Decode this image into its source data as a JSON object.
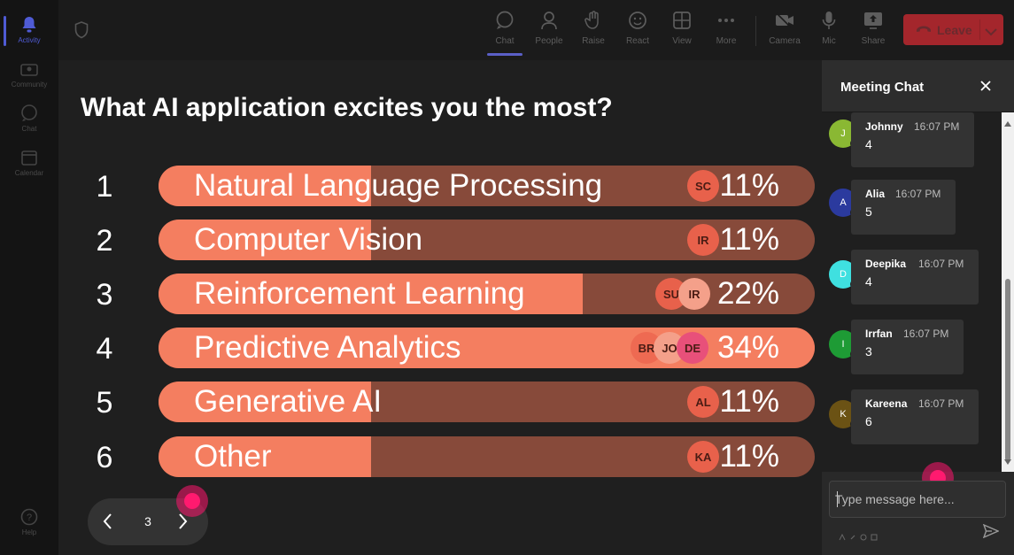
{
  "rail": {
    "items": [
      {
        "label": "Activity",
        "icon": "bell-icon"
      },
      {
        "label": "Community",
        "icon": "community-icon"
      },
      {
        "label": "Chat",
        "icon": "chat-icon"
      },
      {
        "label": "Calendar",
        "icon": "calendar-icon"
      }
    ],
    "help": {
      "label": "Help",
      "icon": "help-icon"
    }
  },
  "toolbar": {
    "chat_label": "Chat",
    "people_label": "People",
    "raise_label": "Raise",
    "react_label": "React",
    "view_label": "View",
    "more_label": "More",
    "camera_label": "Camera",
    "mic_label": "Mic",
    "share_label": "Share",
    "leave_label": "Leave"
  },
  "poll": {
    "question": "What AI application excites you the most?",
    "options": [
      {
        "num": "1",
        "label": "Natural Language Processing",
        "percent_label": "11%",
        "value": 11,
        "avatars": [
          "SC"
        ]
      },
      {
        "num": "2",
        "label": "Computer Vision",
        "percent_label": "11%",
        "value": 11,
        "avatars": [
          "IR"
        ]
      },
      {
        "num": "3",
        "label": "Reinforcement Learning",
        "percent_label": "22%",
        "value": 22,
        "avatars": [
          "SU",
          "IR"
        ]
      },
      {
        "num": "4",
        "label": "Predictive Analytics",
        "percent_label": "34%",
        "value": 34,
        "avatars": [
          "BR",
          "JO",
          "DE"
        ]
      },
      {
        "num": "5",
        "label": "Generative AI",
        "percent_label": "11%",
        "value": 11,
        "avatars": [
          "AL"
        ]
      },
      {
        "num": "6",
        "label": "Other",
        "percent_label": "11%",
        "value": 11,
        "avatars": [
          "KA"
        ]
      }
    ],
    "page": "3"
  },
  "chat": {
    "title": "Meeting Chat",
    "messages": [
      {
        "initial": "J",
        "name": "Johnny",
        "time": "16:07 PM",
        "text": "4",
        "color": "#8ab833"
      },
      {
        "initial": "A",
        "name": "Alia",
        "time": "16:07 PM",
        "text": "5",
        "color": "#2b3a9e"
      },
      {
        "initial": "D",
        "name": "Deepika",
        "time": "16:07 PM",
        "text": "4",
        "color": "#3fe0e0"
      },
      {
        "initial": "I",
        "name": "Irrfan",
        "time": "16:07 PM",
        "text": "3",
        "color": "#1e9b35"
      },
      {
        "initial": "K",
        "name": "Kareena",
        "time": "16:07 PM",
        "text": "6",
        "color": "#6b5214"
      }
    ],
    "input_placeholder": "Type message here..."
  },
  "colors": {
    "bar_fill": "#f47e60",
    "bar_track": "#874a3a",
    "leave_button": "#a4262c",
    "accent": "#5b5fc7"
  }
}
